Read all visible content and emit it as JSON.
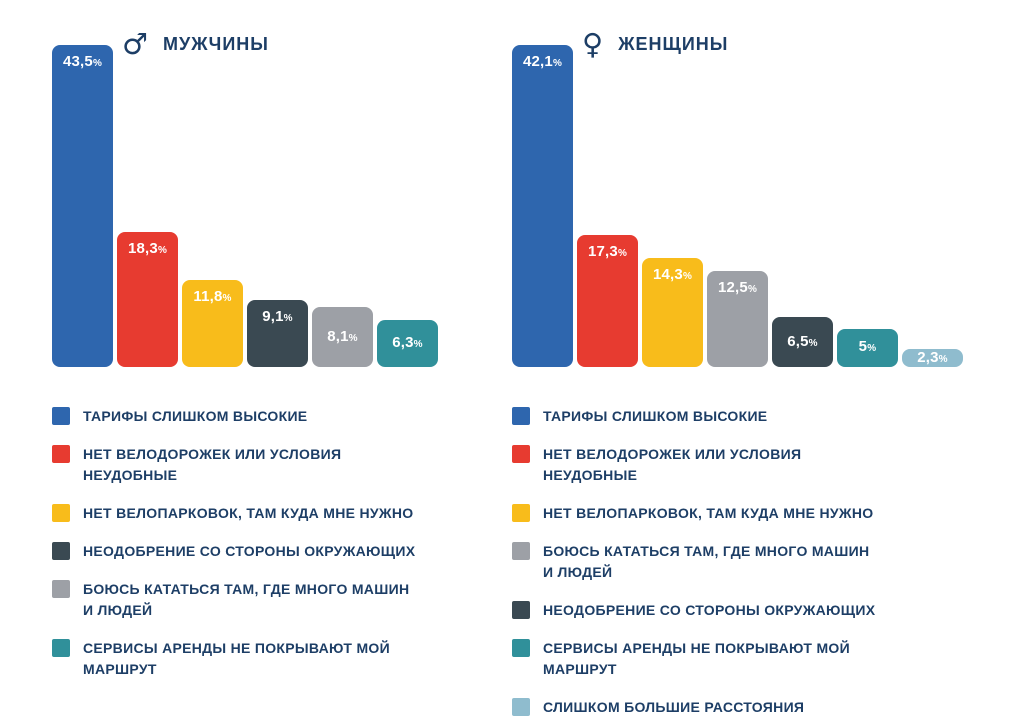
{
  "page": {
    "background": "#FFFFFF",
    "text_color": "#1D3E66"
  },
  "chart_data": [
    {
      "type": "bar",
      "title": "МУЖЧИНЫ",
      "icon": "male-icon",
      "icon_glyph": "♂",
      "unit": "%",
      "grid": false,
      "legend_position": "bottom",
      "categories": [
        "ТАРИФЫ СЛИШКОМ ВЫСОКИЕ",
        "НЕТ ВЕЛОДОРОЖЕК ИЛИ УСЛОВИЯ НЕУДОБНЫЕ",
        "НЕТ ВЕЛОПАРКОВОК, ТАМ КУДА МНЕ НУЖНО",
        "НЕОДОБРЕНИЕ СО СТОРОНЫ ОКРУЖАЮЩИХ",
        "БОЮСЬ КАТАТЬСЯ ТАМ, ГДЕ МНОГО МАШИН И ЛЮДЕЙ",
        "СЕРВИСЫ АРЕНДЫ НЕ ПОКРЫВАЮТ МОЙ МАРШРУТ"
      ],
      "values": [
        43.5,
        18.3,
        11.8,
        9.1,
        8.1,
        6.3
      ],
      "value_labels": [
        "43,5",
        "18,3",
        "11,8",
        "9,1",
        "8,1",
        "6,3"
      ],
      "bar_colors": [
        "#2E66AE",
        "#E73B30",
        "#F8BC1B",
        "#3A4952",
        "#9DA0A6",
        "#30909A"
      ],
      "legend_lines": [
        [
          "ТАРИФЫ СЛИШКОМ ВЫСОКИЕ"
        ],
        [
          "НЕТ ВЕЛОДОРОЖЕК ИЛИ УСЛОВИЯ",
          "НЕУДОБНЫЕ"
        ],
        [
          "НЕТ ВЕЛОПАРКОВОК, ТАМ КУДА МНЕ НУЖНО"
        ],
        [
          "НЕОДОБРЕНИЕ СО СТОРОНЫ ОКРУЖАЮЩИХ"
        ],
        [
          "БОЮСЬ КАТАТЬСЯ ТАМ, ГДЕ МНОГО МАШИН",
          "И ЛЮДЕЙ"
        ],
        [
          "СЕРВИСЫ АРЕНДЫ НЕ ПОКРЫВАЮТ МОЙ",
          "МАРШРУТ"
        ]
      ]
    },
    {
      "type": "bar",
      "title": "ЖЕНЩИНЫ",
      "icon": "female-icon",
      "icon_glyph": "♀",
      "unit": "%",
      "grid": false,
      "legend_position": "bottom",
      "categories": [
        "ТАРИФЫ СЛИШКОМ ВЫСОКИЕ",
        "НЕТ ВЕЛОДОРОЖЕК ИЛИ УСЛОВИЯ НЕУДОБНЫЕ",
        "НЕТ ВЕЛОПАРКОВОК, ТАМ КУДА МНЕ НУЖНО",
        "БОЮСЬ КАТАТЬСЯ ТАМ, ГДЕ МНОГО МАШИН И ЛЮДЕЙ",
        "НЕОДОБРЕНИЕ СО СТОРОНЫ ОКРУЖАЮЩИХ",
        "СЕРВИСЫ АРЕНДЫ НЕ ПОКРЫВАЮТ МОЙ МАРШРУТ",
        "СЛИШКОМ БОЛЬШИЕ РАССТОЯНИЯ"
      ],
      "values": [
        42.1,
        17.3,
        14.3,
        12.5,
        6.5,
        5,
        2.3
      ],
      "value_labels": [
        "42,1",
        "17,3",
        "14,3",
        "12,5",
        "6,5",
        "5",
        "2,3"
      ],
      "bar_colors": [
        "#2E66AE",
        "#E73B30",
        "#F8BC1B",
        "#9DA0A6",
        "#3A4952",
        "#30909A",
        "#8FBCCE"
      ],
      "legend_lines": [
        [
          "ТАРИФЫ СЛИШКОМ ВЫСОКИЕ"
        ],
        [
          "НЕТ ВЕЛОДОРОЖЕК ИЛИ УСЛОВИЯ",
          "НЕУДОБНЫЕ"
        ],
        [
          "НЕТ ВЕЛОПАРКОВОК, ТАМ КУДА МНЕ НУЖНО"
        ],
        [
          "БОЮСЬ КАТАТЬСЯ ТАМ, ГДЕ МНОГО МАШИН",
          "И ЛЮДЕЙ"
        ],
        [
          "НЕОДОБРЕНИЕ СО СТОРОНЫ ОКРУЖАЮЩИХ"
        ],
        [
          "СЕРВИСЫ АРЕНДЫ НЕ ПОКРЫВАЮТ МОЙ",
          "МАРШРУТ"
        ],
        [
          "СЛИШКОМ БОЛЬШИЕ РАССТОЯНИЯ"
        ]
      ]
    }
  ]
}
